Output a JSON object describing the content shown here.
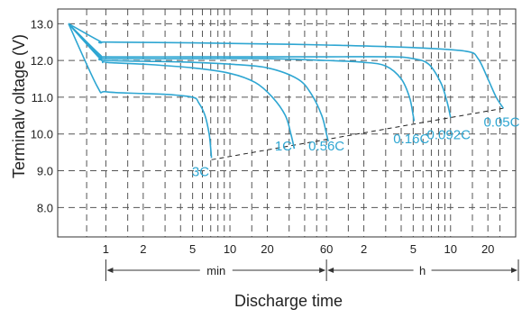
{
  "colors": {
    "curve": "#2ea6d2",
    "grid": "#555555",
    "axis": "#333333",
    "text": "#222222"
  },
  "chart_data": {
    "type": "line",
    "xlabel": "Discharge time",
    "ylabel": "Terminalv oltage (V)",
    "x_scale": "log",
    "y_ticks": [
      "13.0",
      "12.0",
      "11.0",
      "10.0",
      "9.0",
      "8.0"
    ],
    "ylim": [
      7.2,
      13.4
    ],
    "x_ticks": [
      {
        "label": "1",
        "minutes": 1
      },
      {
        "label": "2",
        "minutes": 2
      },
      {
        "label": "5",
        "minutes": 5
      },
      {
        "label": "10",
        "minutes": 10
      },
      {
        "label": "20",
        "minutes": 20
      },
      {
        "label": "60",
        "minutes": 60
      },
      {
        "label": "2",
        "minutes": 120
      },
      {
        "label": "5",
        "minutes": 300
      },
      {
        "label": "10",
        "minutes": 600
      },
      {
        "label": "20",
        "minutes": 1200
      }
    ],
    "unit_labels": {
      "min": "min",
      "h": "h"
    },
    "grid": true,
    "series": [
      {
        "name": "3C",
        "points": [
          [
            0.5,
            13.0
          ],
          [
            0.85,
            11.3
          ],
          [
            1,
            11.15
          ],
          [
            2,
            11.1
          ],
          [
            3,
            11.08
          ],
          [
            5,
            11.0
          ],
          [
            5.6,
            10.85
          ],
          [
            6.3,
            10.5
          ],
          [
            6.8,
            10.0
          ],
          [
            7,
            9.6
          ],
          [
            7.1,
            9.35
          ]
        ]
      },
      {
        "name": "1C",
        "points": [
          [
            0.5,
            13.0
          ],
          [
            0.9,
            12.05
          ],
          [
            1,
            11.95
          ],
          [
            2,
            11.9
          ],
          [
            5,
            11.8
          ],
          [
            10,
            11.65
          ],
          [
            16,
            11.4
          ],
          [
            22,
            11.0
          ],
          [
            28,
            10.5
          ],
          [
            31,
            10.0
          ],
          [
            33,
            9.6
          ]
        ]
      },
      {
        "name": "0.56C",
        "points": [
          [
            0.5,
            13.0
          ],
          [
            0.9,
            12.05
          ],
          [
            1,
            12.0
          ],
          [
            2,
            11.98
          ],
          [
            5,
            11.95
          ],
          [
            10,
            11.9
          ],
          [
            20,
            11.8
          ],
          [
            35,
            11.5
          ],
          [
            45,
            11.1
          ],
          [
            55,
            10.5
          ],
          [
            60,
            10.0
          ],
          [
            62,
            9.8
          ]
        ]
      },
      {
        "name": "0.16C",
        "points": [
          [
            0.5,
            13.0
          ],
          [
            0.9,
            12.1
          ],
          [
            1,
            12.05
          ],
          [
            5,
            12.05
          ],
          [
            20,
            12.05
          ],
          [
            60,
            12.0
          ],
          [
            120,
            11.95
          ],
          [
            180,
            11.85
          ],
          [
            240,
            11.5
          ],
          [
            280,
            11.0
          ],
          [
            300,
            10.5
          ],
          [
            305,
            10.35
          ]
        ]
      },
      {
        "name": "0.092C",
        "points": [
          [
            0.5,
            13.0
          ],
          [
            0.9,
            12.15
          ],
          [
            1,
            12.1
          ],
          [
            5,
            12.1
          ],
          [
            20,
            12.1
          ],
          [
            60,
            12.1
          ],
          [
            200,
            12.1
          ],
          [
            300,
            12.05
          ],
          [
            400,
            11.9
          ],
          [
            500,
            11.4
          ],
          [
            560,
            10.9
          ],
          [
            600,
            10.45
          ]
        ]
      },
      {
        "name": "0.05C",
        "points": [
          [
            0.5,
            13.0
          ],
          [
            0.9,
            12.52
          ],
          [
            1,
            12.5
          ],
          [
            5,
            12.48
          ],
          [
            20,
            12.45
          ],
          [
            60,
            12.42
          ],
          [
            300,
            12.35
          ],
          [
            800,
            12.25
          ],
          [
            1000,
            12.05
          ],
          [
            1200,
            11.5
          ],
          [
            1400,
            11.0
          ],
          [
            1600,
            10.7
          ]
        ]
      }
    ],
    "series_labels": [
      {
        "name": "3C",
        "minutes": 5.8,
        "v": 9.0
      },
      {
        "name": "1C",
        "minutes": 27,
        "v": 9.7
      },
      {
        "name": "0.56C",
        "minutes": 60,
        "v": 9.7
      },
      {
        "name": "0.16C",
        "minutes": 290,
        "v": 9.9
      },
      {
        "name": "0.092C",
        "minutes": 580,
        "v": 10.0
      },
      {
        "name": "0.05C",
        "minutes": 1550,
        "v": 10.35
      }
    ],
    "cutoff_line": [
      [
        7.1,
        9.3
      ],
      [
        1600,
        10.7
      ]
    ]
  }
}
